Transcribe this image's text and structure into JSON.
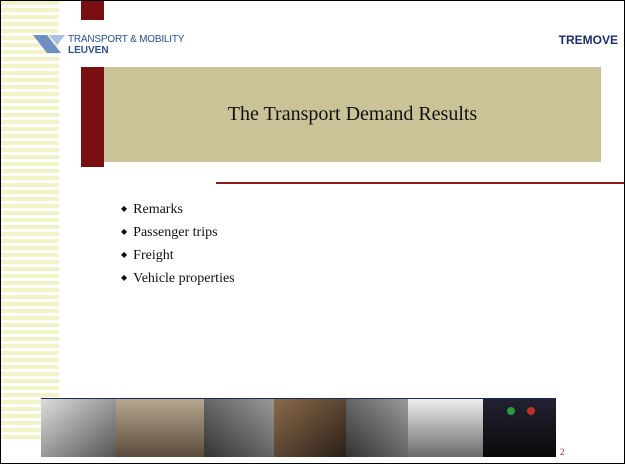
{
  "header": {
    "logo_line1": "TRANSPORT & MOBILITY",
    "logo_line2": "LEUVEN",
    "brand": "TREMOVE"
  },
  "title": "The Transport Demand Results",
  "bullets": [
    "Remarks",
    "Passenger trips",
    "Freight",
    "Vehicle properties"
  ],
  "page_number": "2"
}
